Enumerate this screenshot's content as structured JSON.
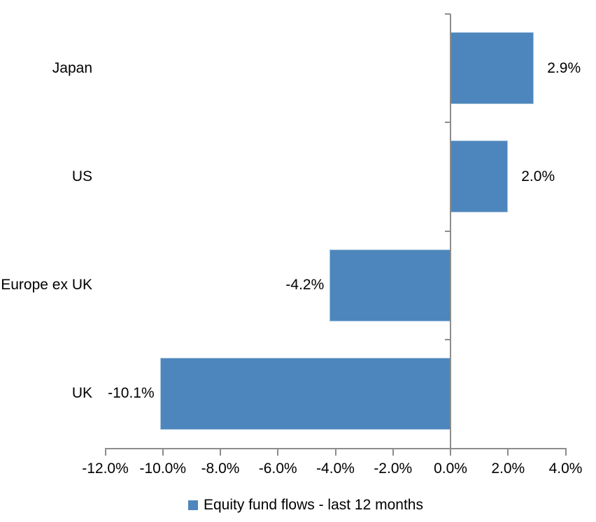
{
  "chart_data": {
    "type": "bar",
    "orientation": "horizontal",
    "title": "",
    "xlabel": "",
    "ylabel": "",
    "categories": [
      "Japan",
      "US",
      "Europe ex UK",
      "UK"
    ],
    "series": [
      {
        "name": "Equity fund flows - last 12 months",
        "values": [
          2.9,
          2.0,
          -4.2,
          -10.1
        ],
        "data_labels": [
          "2.9%",
          "2.0%",
          "-4.2%",
          "-10.1%"
        ]
      }
    ],
    "xlim": [
      -12,
      4
    ],
    "x_ticks": [
      -12,
      -10,
      -8,
      -6,
      -4,
      -2,
      0,
      2,
      4
    ],
    "x_tick_labels": [
      "-12.0%",
      "-10.0%",
      "-8.0%",
      "-6.0%",
      "-4.0%",
      "-2.0%",
      "0.0%",
      "2.0%",
      "4.0%"
    ],
    "grid": false,
    "legend_position": "bottom",
    "bar_color": "#4d86bc",
    "bar_border_color": "#a9c5de",
    "axis_color": "#8c8c8c",
    "text_color": "#000000"
  },
  "legend": {
    "label": "Equity fund flows - last 12 months",
    "swatch_color": "#4d86bc"
  }
}
